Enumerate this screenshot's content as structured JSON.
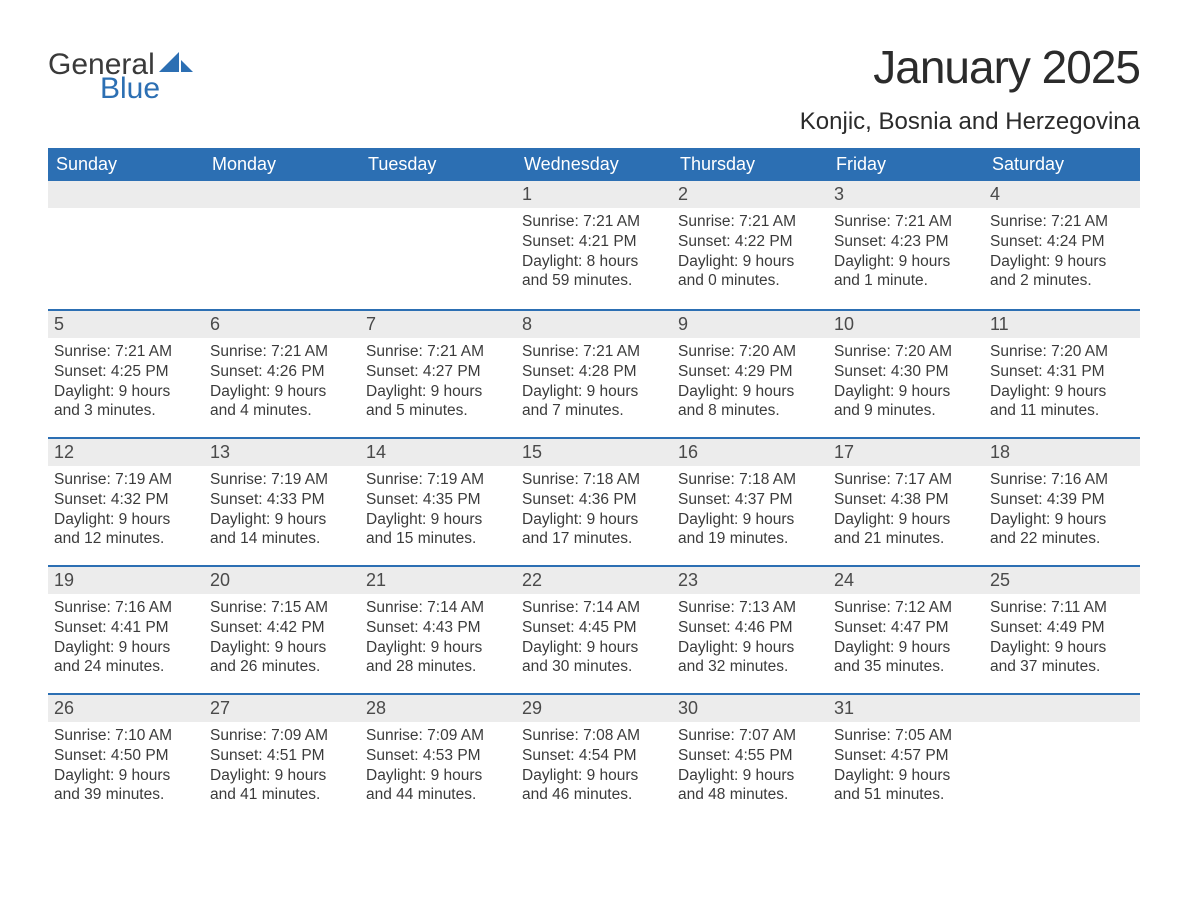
{
  "logo": {
    "line1": "General",
    "line2": "Blue",
    "sail_color": "#2c6fb3"
  },
  "title": "January 2025",
  "subtitle": "Konjic, Bosnia and Herzegovina",
  "colors": {
    "header_bg": "#2c6fb3",
    "header_text": "#ffffff",
    "band_bg": "#ececec",
    "band_border": "#2c6fb3",
    "body_text": "#3b3b3b",
    "title_text": "#2b2b2b"
  },
  "fontsizes": {
    "title": 46,
    "subtitle": 24,
    "weekday": 18,
    "daynum": 18,
    "body": 15.5
  },
  "weekdays": [
    "Sunday",
    "Monday",
    "Tuesday",
    "Wednesday",
    "Thursday",
    "Friday",
    "Saturday"
  ],
  "weeks": [
    [
      null,
      null,
      null,
      {
        "n": "1",
        "sr": "Sunrise: 7:21 AM",
        "ss": "Sunset: 4:21 PM",
        "d1": "Daylight: 8 hours",
        "d2": "and 59 minutes."
      },
      {
        "n": "2",
        "sr": "Sunrise: 7:21 AM",
        "ss": "Sunset: 4:22 PM",
        "d1": "Daylight: 9 hours",
        "d2": "and 0 minutes."
      },
      {
        "n": "3",
        "sr": "Sunrise: 7:21 AM",
        "ss": "Sunset: 4:23 PM",
        "d1": "Daylight: 9 hours",
        "d2": "and 1 minute."
      },
      {
        "n": "4",
        "sr": "Sunrise: 7:21 AM",
        "ss": "Sunset: 4:24 PM",
        "d1": "Daylight: 9 hours",
        "d2": "and 2 minutes."
      }
    ],
    [
      {
        "n": "5",
        "sr": "Sunrise: 7:21 AM",
        "ss": "Sunset: 4:25 PM",
        "d1": "Daylight: 9 hours",
        "d2": "and 3 minutes."
      },
      {
        "n": "6",
        "sr": "Sunrise: 7:21 AM",
        "ss": "Sunset: 4:26 PM",
        "d1": "Daylight: 9 hours",
        "d2": "and 4 minutes."
      },
      {
        "n": "7",
        "sr": "Sunrise: 7:21 AM",
        "ss": "Sunset: 4:27 PM",
        "d1": "Daylight: 9 hours",
        "d2": "and 5 minutes."
      },
      {
        "n": "8",
        "sr": "Sunrise: 7:21 AM",
        "ss": "Sunset: 4:28 PM",
        "d1": "Daylight: 9 hours",
        "d2": "and 7 minutes."
      },
      {
        "n": "9",
        "sr": "Sunrise: 7:20 AM",
        "ss": "Sunset: 4:29 PM",
        "d1": "Daylight: 9 hours",
        "d2": "and 8 minutes."
      },
      {
        "n": "10",
        "sr": "Sunrise: 7:20 AM",
        "ss": "Sunset: 4:30 PM",
        "d1": "Daylight: 9 hours",
        "d2": "and 9 minutes."
      },
      {
        "n": "11",
        "sr": "Sunrise: 7:20 AM",
        "ss": "Sunset: 4:31 PM",
        "d1": "Daylight: 9 hours",
        "d2": "and 11 minutes."
      }
    ],
    [
      {
        "n": "12",
        "sr": "Sunrise: 7:19 AM",
        "ss": "Sunset: 4:32 PM",
        "d1": "Daylight: 9 hours",
        "d2": "and 12 minutes."
      },
      {
        "n": "13",
        "sr": "Sunrise: 7:19 AM",
        "ss": "Sunset: 4:33 PM",
        "d1": "Daylight: 9 hours",
        "d2": "and 14 minutes."
      },
      {
        "n": "14",
        "sr": "Sunrise: 7:19 AM",
        "ss": "Sunset: 4:35 PM",
        "d1": "Daylight: 9 hours",
        "d2": "and 15 minutes."
      },
      {
        "n": "15",
        "sr": "Sunrise: 7:18 AM",
        "ss": "Sunset: 4:36 PM",
        "d1": "Daylight: 9 hours",
        "d2": "and 17 minutes."
      },
      {
        "n": "16",
        "sr": "Sunrise: 7:18 AM",
        "ss": "Sunset: 4:37 PM",
        "d1": "Daylight: 9 hours",
        "d2": "and 19 minutes."
      },
      {
        "n": "17",
        "sr": "Sunrise: 7:17 AM",
        "ss": "Sunset: 4:38 PM",
        "d1": "Daylight: 9 hours",
        "d2": "and 21 minutes."
      },
      {
        "n": "18",
        "sr": "Sunrise: 7:16 AM",
        "ss": "Sunset: 4:39 PM",
        "d1": "Daylight: 9 hours",
        "d2": "and 22 minutes."
      }
    ],
    [
      {
        "n": "19",
        "sr": "Sunrise: 7:16 AM",
        "ss": "Sunset: 4:41 PM",
        "d1": "Daylight: 9 hours",
        "d2": "and 24 minutes."
      },
      {
        "n": "20",
        "sr": "Sunrise: 7:15 AM",
        "ss": "Sunset: 4:42 PM",
        "d1": "Daylight: 9 hours",
        "d2": "and 26 minutes."
      },
      {
        "n": "21",
        "sr": "Sunrise: 7:14 AM",
        "ss": "Sunset: 4:43 PM",
        "d1": "Daylight: 9 hours",
        "d2": "and 28 minutes."
      },
      {
        "n": "22",
        "sr": "Sunrise: 7:14 AM",
        "ss": "Sunset: 4:45 PM",
        "d1": "Daylight: 9 hours",
        "d2": "and 30 minutes."
      },
      {
        "n": "23",
        "sr": "Sunrise: 7:13 AM",
        "ss": "Sunset: 4:46 PM",
        "d1": "Daylight: 9 hours",
        "d2": "and 32 minutes."
      },
      {
        "n": "24",
        "sr": "Sunrise: 7:12 AM",
        "ss": "Sunset: 4:47 PM",
        "d1": "Daylight: 9 hours",
        "d2": "and 35 minutes."
      },
      {
        "n": "25",
        "sr": "Sunrise: 7:11 AM",
        "ss": "Sunset: 4:49 PM",
        "d1": "Daylight: 9 hours",
        "d2": "and 37 minutes."
      }
    ],
    [
      {
        "n": "26",
        "sr": "Sunrise: 7:10 AM",
        "ss": "Sunset: 4:50 PM",
        "d1": "Daylight: 9 hours",
        "d2": "and 39 minutes."
      },
      {
        "n": "27",
        "sr": "Sunrise: 7:09 AM",
        "ss": "Sunset: 4:51 PM",
        "d1": "Daylight: 9 hours",
        "d2": "and 41 minutes."
      },
      {
        "n": "28",
        "sr": "Sunrise: 7:09 AM",
        "ss": "Sunset: 4:53 PM",
        "d1": "Daylight: 9 hours",
        "d2": "and 44 minutes."
      },
      {
        "n": "29",
        "sr": "Sunrise: 7:08 AM",
        "ss": "Sunset: 4:54 PM",
        "d1": "Daylight: 9 hours",
        "d2": "and 46 minutes."
      },
      {
        "n": "30",
        "sr": "Sunrise: 7:07 AM",
        "ss": "Sunset: 4:55 PM",
        "d1": "Daylight: 9 hours",
        "d2": "and 48 minutes."
      },
      {
        "n": "31",
        "sr": "Sunrise: 7:05 AM",
        "ss": "Sunset: 4:57 PM",
        "d1": "Daylight: 9 hours",
        "d2": "and 51 minutes."
      },
      null
    ]
  ]
}
